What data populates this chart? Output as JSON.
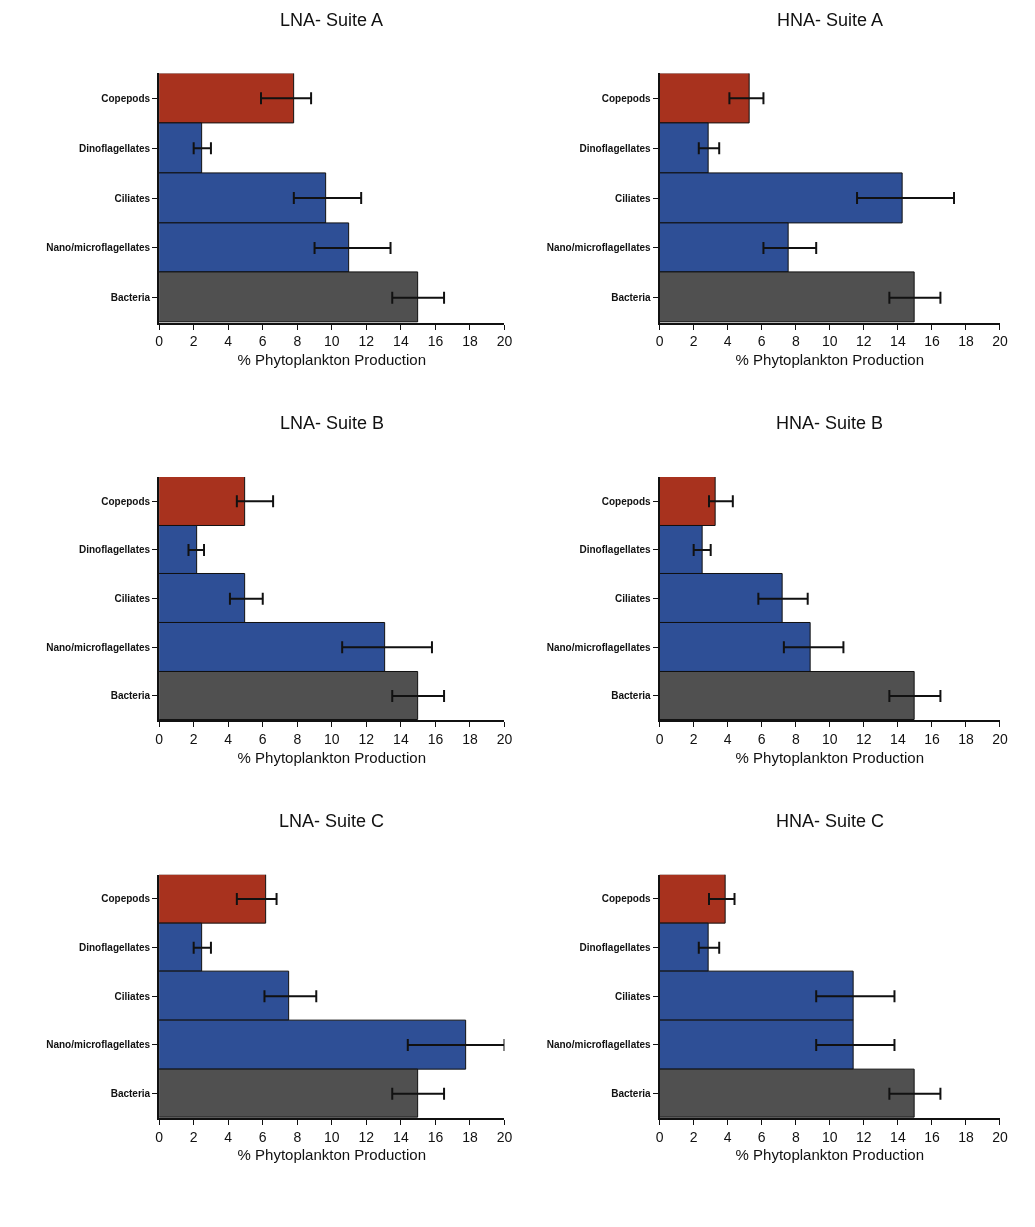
{
  "chart_data": [
    {
      "type": "bar",
      "orientation": "horizontal",
      "title": "LNA- Suite A",
      "xlabel": "% Phytoplankton Production",
      "categories": [
        "Copepods",
        "Dinoflagellates",
        "Ciliates",
        "Nano/microflagellates",
        "Bacteria"
      ],
      "values": [
        7.8,
        2.5,
        9.7,
        11.0,
        15
      ],
      "colors": [
        "#a8321e",
        "#2e4f96",
        "#2e4f96",
        "#2e4f96",
        "#505050"
      ],
      "errors": [
        [
          5.9,
          8.8
        ],
        [
          2.0,
          3.0
        ],
        [
          7.8,
          11.7
        ],
        [
          9.0,
          13.4
        ],
        [
          13.5,
          16.5
        ]
      ],
      "xlim": [
        0,
        20
      ],
      "xticks": [
        0,
        2,
        4,
        6,
        8,
        10,
        12,
        14,
        16,
        18,
        20
      ]
    },
    {
      "type": "bar",
      "orientation": "horizontal",
      "title": "HNA- Suite A",
      "xlabel": "% Phytoplankton Production",
      "categories": [
        "Copepods",
        "Dinoflagellates",
        "Ciliates",
        "Nano/microflagellates",
        "Bacteria"
      ],
      "values": [
        5.3,
        2.9,
        14.3,
        7.6,
        15
      ],
      "colors": [
        "#a8321e",
        "#2e4f96",
        "#2e4f96",
        "#2e4f96",
        "#505050"
      ],
      "errors": [
        [
          4.1,
          6.1
        ],
        [
          2.3,
          3.5
        ],
        [
          11.6,
          17.3
        ],
        [
          6.1,
          9.2
        ],
        [
          13.5,
          16.5
        ]
      ],
      "xlim": [
        0,
        20
      ],
      "xticks": [
        0,
        2,
        4,
        6,
        8,
        10,
        12,
        14,
        16,
        18,
        20
      ]
    },
    {
      "type": "bar",
      "orientation": "horizontal",
      "title": "LNA- Suite B",
      "xlabel": "% Phytoplankton Production",
      "categories": [
        "Copepods",
        "Dinoflagellates",
        "Ciliates",
        "Nano/microflagellates",
        "Bacteria"
      ],
      "values": [
        5.0,
        2.2,
        5.0,
        13.1,
        15
      ],
      "colors": [
        "#a8321e",
        "#2e4f96",
        "#2e4f96",
        "#2e4f96",
        "#505050"
      ],
      "errors": [
        [
          4.5,
          6.6
        ],
        [
          1.7,
          2.6
        ],
        [
          4.1,
          6.0
        ],
        [
          10.6,
          15.8
        ],
        [
          13.5,
          16.5
        ]
      ],
      "xlim": [
        0,
        20
      ],
      "xticks": [
        0,
        2,
        4,
        6,
        8,
        10,
        12,
        14,
        16,
        18,
        20
      ]
    },
    {
      "type": "bar",
      "orientation": "horizontal",
      "title": "HNA- Suite B",
      "xlabel": "% Phytoplankton Production",
      "categories": [
        "Copepods",
        "Dinoflagellates",
        "Ciliates",
        "Nano/microflagellates",
        "Bacteria"
      ],
      "values": [
        3.3,
        2.5,
        7.2,
        8.9,
        15
      ],
      "colors": [
        "#a8321e",
        "#2e4f96",
        "#2e4f96",
        "#2e4f96",
        "#505050"
      ],
      "errors": [
        [
          2.9,
          4.3
        ],
        [
          2.0,
          3.0
        ],
        [
          5.8,
          8.7
        ],
        [
          7.3,
          10.8
        ],
        [
          13.5,
          16.5
        ]
      ],
      "xlim": [
        0,
        20
      ],
      "xticks": [
        0,
        2,
        4,
        6,
        8,
        10,
        12,
        14,
        16,
        18,
        20
      ]
    },
    {
      "type": "bar",
      "orientation": "horizontal",
      "title": "LNA- Suite C",
      "xlabel": "% Phytoplankton Production",
      "categories": [
        "Copepods",
        "Dinoflagellates",
        "Ciliates",
        "Nano/microflagellates",
        "Bacteria"
      ],
      "values": [
        6.2,
        2.5,
        7.5,
        17.8,
        15
      ],
      "colors": [
        "#a8321e",
        "#2e4f96",
        "#2e4f96",
        "#2e4f96",
        "#505050"
      ],
      "errors": [
        [
          4.5,
          6.8
        ],
        [
          2.0,
          3.0
        ],
        [
          6.1,
          9.1
        ],
        [
          14.4,
          20
        ],
        [
          13.5,
          16.5
        ]
      ],
      "xlim": [
        0,
        20
      ],
      "xticks": [
        0,
        2,
        4,
        6,
        8,
        10,
        12,
        14,
        16,
        18,
        20
      ]
    },
    {
      "type": "bar",
      "orientation": "horizontal",
      "title": "HNA- Suite C",
      "xlabel": "% Phytoplankton Production",
      "categories": [
        "Copepods",
        "Dinoflagellates",
        "Ciliates",
        "Nano/microflagellates",
        "Bacteria"
      ],
      "values": [
        3.9,
        2.9,
        11.4,
        11.4,
        15
      ],
      "colors": [
        "#a8321e",
        "#2e4f96",
        "#2e4f96",
        "#2e4f96",
        "#505050"
      ],
      "errors": [
        [
          2.9,
          4.4
        ],
        [
          2.3,
          3.5
        ],
        [
          9.2,
          13.8
        ],
        [
          9.2,
          13.8
        ],
        [
          13.5,
          16.5
        ]
      ],
      "xlim": [
        0,
        20
      ],
      "xticks": [
        0,
        2,
        4,
        6,
        8,
        10,
        12,
        14,
        16,
        18,
        20
      ]
    }
  ]
}
